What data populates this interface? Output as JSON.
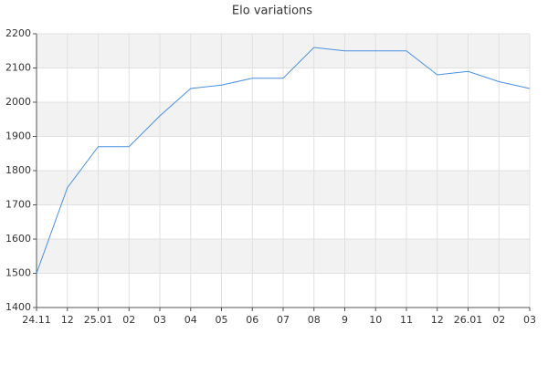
{
  "chart_data": {
    "type": "line",
    "title": "Elo variations",
    "categories": [
      "24.11",
      "12",
      "25.01",
      "02",
      "03",
      "04",
      "05",
      "06",
      "07",
      "08",
      "9",
      "10",
      "11",
      "12",
      "26.01",
      "02",
      "03"
    ],
    "values": [
      1500,
      1750,
      1870,
      1870,
      1960,
      2040,
      2050,
      2070,
      2070,
      2160,
      2150,
      2150,
      2150,
      2080,
      2090,
      2060,
      2040
    ],
    "color": "#4a90e2",
    "ylim": [
      1400,
      2200
    ],
    "yticks": [
      1400,
      1500,
      1600,
      1700,
      1800,
      1900,
      2000,
      2100,
      2200
    ],
    "grid": true,
    "alternate_bands": true
  }
}
